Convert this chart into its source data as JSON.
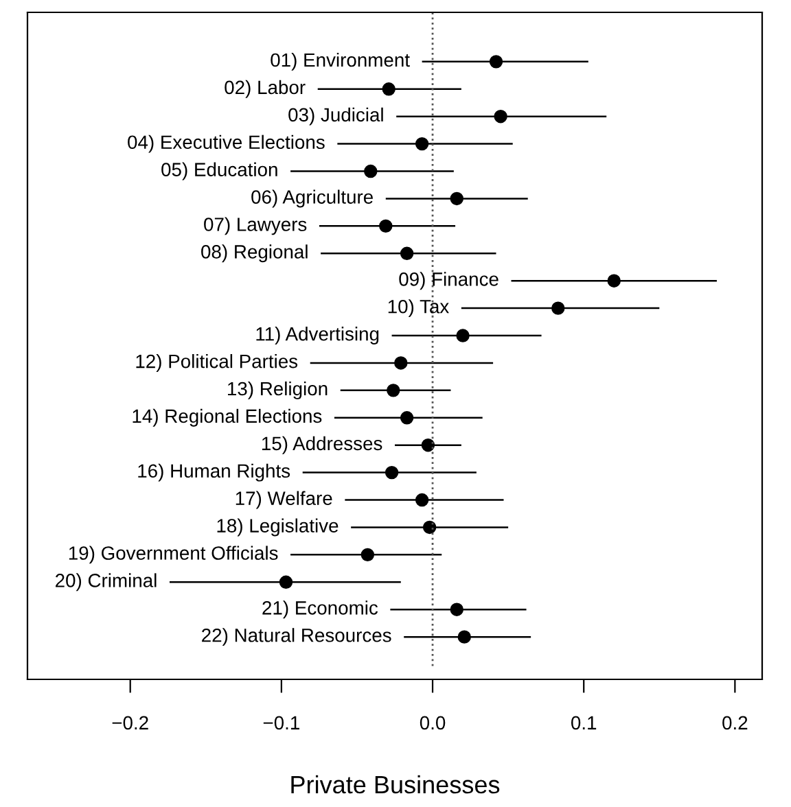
{
  "chart_data": {
    "type": "scatter",
    "orientation": "horizontal",
    "xlabel": "Private Businesses",
    "categories": [
      "01) Environment",
      "02) Labor",
      "03) Judicial",
      "04) Executive Elections",
      "05) Education",
      "06) Agriculture",
      "07) Lawyers",
      "08) Regional",
      "09) Finance",
      "10) Tax",
      "11) Advertising",
      "12) Political Parties",
      "13) Religion",
      "14) Regional Elections",
      "15) Addresses",
      "16) Human Rights",
      "17) Welfare",
      "18) Legislative",
      "19) Government Officials",
      "20) Criminal",
      "21) Economic",
      "22) Natural Resources"
    ],
    "values": [
      0.042,
      -0.029,
      0.045,
      -0.007,
      -0.041,
      0.016,
      -0.031,
      -0.017,
      0.12,
      0.083,
      0.02,
      -0.021,
      -0.026,
      -0.017,
      -0.003,
      -0.027,
      -0.007,
      -0.002,
      -0.043,
      -0.097,
      0.016,
      0.021
    ],
    "errors": [
      [
        -0.007,
        0.103
      ],
      [
        -0.076,
        0.019
      ],
      [
        -0.024,
        0.115
      ],
      [
        -0.063,
        0.053
      ],
      [
        -0.094,
        0.014
      ],
      [
        -0.031,
        0.063
      ],
      [
        -0.075,
        0.015
      ],
      [
        -0.074,
        0.042
      ],
      [
        0.052,
        0.188
      ],
      [
        0.019,
        0.15
      ],
      [
        -0.027,
        0.072
      ],
      [
        -0.081,
        0.04
      ],
      [
        -0.061,
        0.012
      ],
      [
        -0.065,
        0.033
      ],
      [
        -0.025,
        0.019
      ],
      [
        -0.086,
        0.029
      ],
      [
        -0.058,
        0.047
      ],
      [
        -0.054,
        0.05
      ],
      [
        -0.094,
        0.006
      ],
      [
        -0.174,
        -0.021
      ],
      [
        -0.028,
        0.062
      ],
      [
        -0.019,
        0.065
      ]
    ],
    "color": "#000000",
    "marker": "circle",
    "xlim": [
      -0.268,
      0.218
    ],
    "xticks": [
      {
        "value": -0.2,
        "label": "−0.2"
      },
      {
        "value": -0.1,
        "label": "−0.1"
      },
      {
        "value": 0.0,
        "label": "0.0"
      },
      {
        "value": 0.1,
        "label": "0.1"
      },
      {
        "value": 0.2,
        "label": "0.2"
      }
    ],
    "ref_lines": [
      {
        "axis": "x",
        "value": 0,
        "label": null,
        "color": "#555555",
        "line_style": "dotted"
      }
    ],
    "tick_labels": "x",
    "grid": false,
    "legend": false
  }
}
